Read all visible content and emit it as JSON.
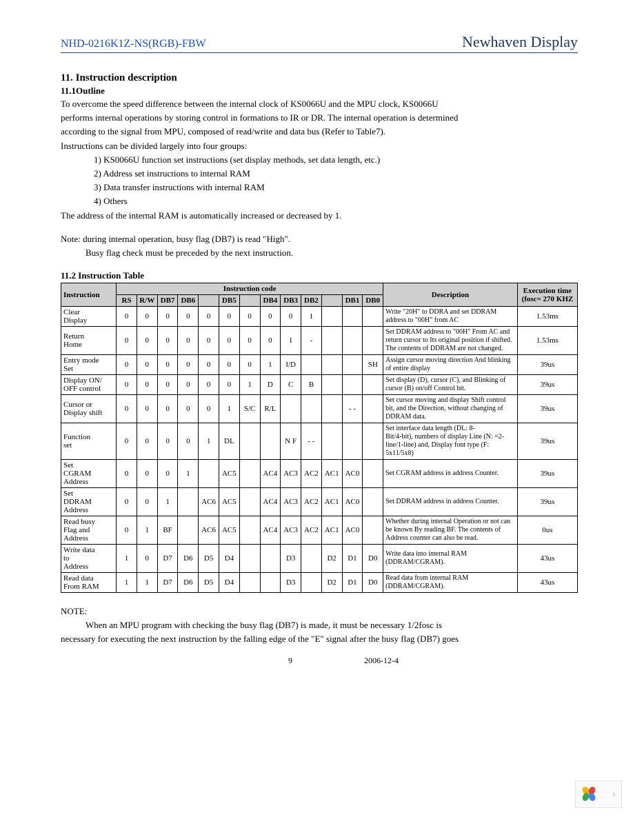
{
  "header": {
    "left": "NHD-0216K1Z-NS(RGB)-FBW",
    "right": "Newhaven Display"
  },
  "section": {
    "title": "11. Instruction description",
    "outline_title": "11.1Outline",
    "paragraphs": [
      "To overcome the speed difference between the internal clock of KS0066U and the MPU clock, KS0066U",
      "performs internal operations by storing control in formations to IR or DR. The internal operation is determined",
      "according to the signal from MPU, composed of read/write and data bus (Refer to Table7).",
      "Instructions can be divided largely into four groups:"
    ],
    "list": [
      "1) KS0066U function set instructions (set display methods, set data length, etc.)",
      "2) Address set instructions to internal RAM",
      "3) Data transfer instructions with internal RAM",
      "4) Others"
    ],
    "after_list": "The address of the internal RAM is automatically increased or decreased by 1.",
    "note_lines": [
      "Note: during internal operation, busy flag (DB7) is read \"High\".",
      "Busy flag check must be preceded by the next instruction."
    ],
    "table_title": "11.2 Instruction Table"
  },
  "table": {
    "header": {
      "instruction": "Instruction",
      "code_group": "Instruction code",
      "description": "Description",
      "exec": "Execution time (fosc= 270 KHZ",
      "cols": [
        "RS",
        "R/W",
        "DB7",
        "DB6",
        "",
        "DB5",
        "",
        "DB4",
        "DB3",
        "DB2",
        "",
        "DB1",
        "DB0"
      ]
    },
    "rows": [
      {
        "instr": "Clear\nDisplay",
        "code": [
          "0",
          "0",
          "0",
          "0",
          "0",
          "0",
          "0",
          "0",
          "0",
          "1",
          "",
          "",
          ""
        ],
        "desc": "Write \"20H\" to DDRA and set DDRAM address to \"00H\" from AC",
        "exec": "1.53ms"
      },
      {
        "instr": "Return\nHome",
        "code": [
          "0",
          "0",
          "0",
          "0",
          "0",
          "0",
          "0",
          "0",
          "1",
          "-",
          "",
          "",
          ""
        ],
        "desc": "Set DDRAM address to \"00H\" From AC and return cursor to Its original position if shifted. The contents of DDRAM are not changed.",
        "exec": "1.53ms"
      },
      {
        "instr": "Entry mode\nSet",
        "code": [
          "0",
          "0",
          "0",
          "0",
          "0",
          "0",
          "0",
          "1",
          "I/D",
          "",
          "",
          "",
          "SH"
        ],
        "desc": "Assign cursor moving direction And blinking of entire display",
        "exec": "39us"
      },
      {
        "instr": "Display ON/\nOFF control",
        "code": [
          "0",
          "0",
          "0",
          "0",
          "0",
          "0",
          "1",
          "D",
          "C",
          "B",
          "",
          "",
          ""
        ],
        "desc": "Set display (D), cursor (C), and Blinking of cursor (B) on/off Control bit.",
        "exec": "39us"
      },
      {
        "instr": "Cursor or\nDisplay shift",
        "code": [
          "0",
          "0",
          "0",
          "0",
          "0",
          "1",
          "S/C",
          "R/L",
          "",
          "",
          "",
          "- -",
          ""
        ],
        "desc": "Set cursor moving and display Shift control bit, and the Direction, without changing of DDRAM data.",
        "exec": "39us"
      },
      {
        "instr": "Function\nset",
        "code": [
          "0",
          "0",
          "0",
          "0",
          "1",
          "DL",
          "",
          "",
          "N F",
          "- -",
          "",
          "",
          ""
        ],
        "desc": "Set interface data length (DL: 8-\nBit/4-bit), numbers of display Line (N: =2-line/1-line) and, Display font type (F: 5x11/5x8)",
        "exec": "39us"
      },
      {
        "instr": "Set\nCGRAM\nAddress",
        "code": [
          "0",
          "0",
          "0",
          "1",
          "",
          "AC5",
          "",
          "AC4",
          "AC3",
          "AC2",
          "AC1",
          "AC0",
          ""
        ],
        "desc": "Set CGRAM address in address Counter.",
        "exec": "39us"
      },
      {
        "instr": "Set\nDDRAM\nAddress",
        "code": [
          "0",
          "0",
          "1",
          "",
          "AC6",
          "AC5",
          "",
          "AC4",
          "AC3",
          "AC2",
          "AC1",
          "AC0",
          ""
        ],
        "desc": "Set DDRAM address in address Counter.",
        "exec": "39us"
      },
      {
        "instr": " Read busy\nFlag and\nAddress",
        "code": [
          "0",
          "1",
          "BF",
          "",
          "AC6",
          "AC5",
          "",
          "AC4",
          "AC3",
          "AC2",
          "AC1",
          "AC0",
          ""
        ],
        "desc": "Whether during internal Operation or not can be known By reading BF. The contents of Address counter can also be read.",
        "exec": "0us"
      },
      {
        "instr": "Write data\nto\nAddress",
        "code": [
          "1",
          "0",
          "D7",
          "D6",
          "D5",
          "D4",
          "",
          "",
          "D3",
          "",
          "D2",
          "D1",
          "D0"
        ],
        "desc": "Write data into internal RAM (DDRAM/CGRAM).",
        "exec": "43us"
      },
      {
        "instr": "Read data\nFrom RAM",
        "code": [
          "1",
          "1",
          "D7",
          "D6",
          "D5",
          "D4",
          "",
          "",
          "D3",
          "",
          "D2",
          "D1",
          "D0"
        ],
        "desc": "Read data from internal RAM (DDRAM/CGRAM).",
        "exec": "43us"
      }
    ]
  },
  "footer_note": {
    "title": "NOTE:",
    "lines": [
      "When an MPU program with checking the busy flag (DB7) is made, it must be necessary 1/2fosc is",
      "necessary for executing the next instruction by the falling edge of the \"E\" signal after the busy flag (DB7) goes"
    ]
  },
  "footer": {
    "page": "9",
    "date": "2006-12-4"
  },
  "widget_colors": {
    "p1": "#f4b400",
    "p2": "#ea4335",
    "p3": "#34a853",
    "p4": "#4285f4"
  }
}
